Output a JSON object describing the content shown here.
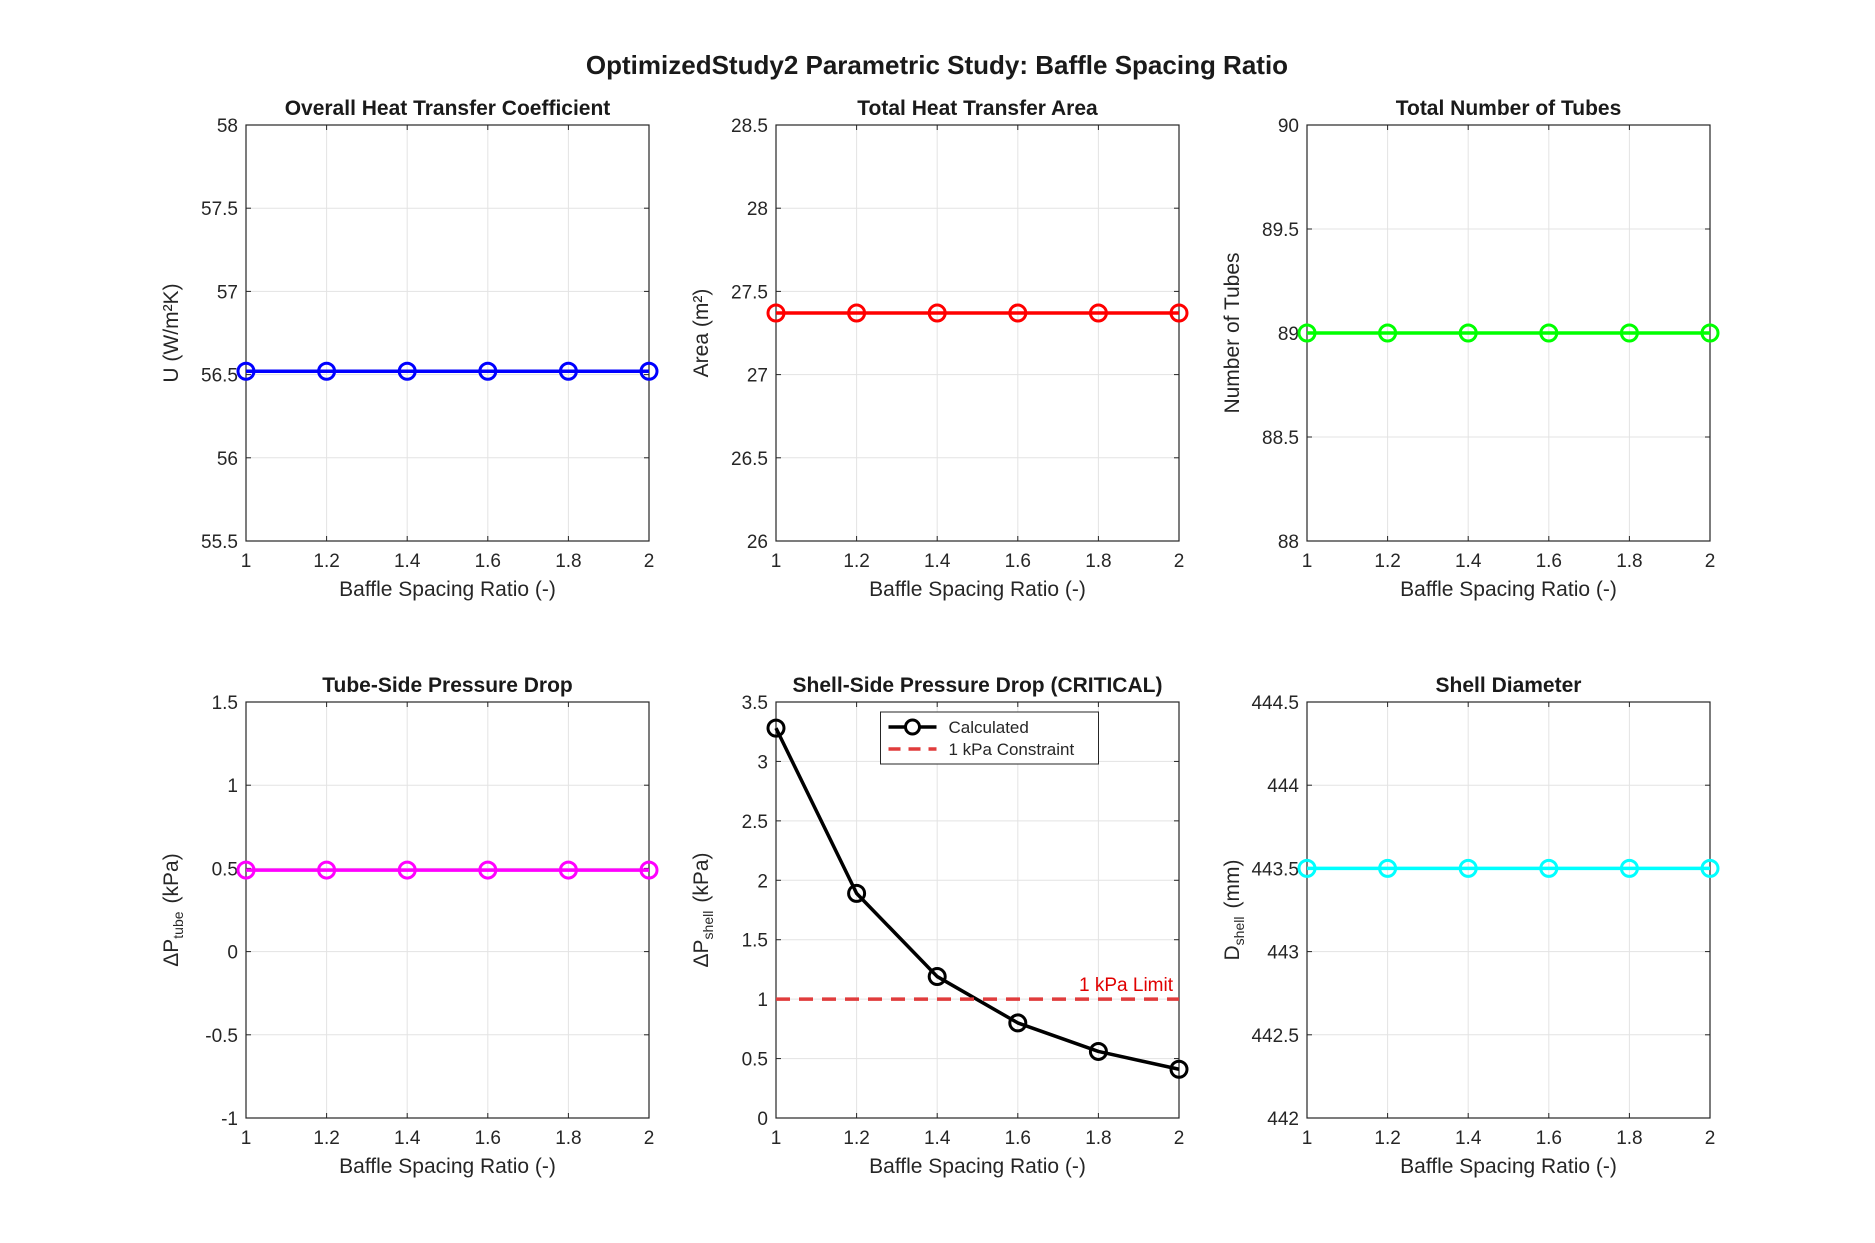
{
  "figure": {
    "title": "OptimizedStudy2 Parametric Study: Baffle Spacing Ratio"
  },
  "chart_data": [
    {
      "type": "line",
      "title": "Overall Heat Transfer Coefficient",
      "xlabel": "Baffle Spacing Ratio (-)",
      "ylabel": "U (W/m²K)",
      "x": [
        1.0,
        1.2,
        1.4,
        1.6,
        1.8,
        2.0
      ],
      "xlim": [
        1,
        2
      ],
      "ylim": [
        55.5,
        58
      ],
      "xticks": [
        "1",
        "1.2",
        "1.4",
        "1.6",
        "1.8",
        "2"
      ],
      "yticks": [
        "55.5",
        "56",
        "56.5",
        "57",
        "57.5",
        "58"
      ],
      "grid": true,
      "series": [
        {
          "values": [
            56.52,
            56.52,
            56.52,
            56.52,
            56.52,
            56.52
          ],
          "color": "#0000ff",
          "marker": "circle"
        }
      ]
    },
    {
      "type": "line",
      "title": "Total Heat Transfer Area",
      "xlabel": "Baffle Spacing Ratio (-)",
      "ylabel": "Area (m²)",
      "x": [
        1.0,
        1.2,
        1.4,
        1.6,
        1.8,
        2.0
      ],
      "xlim": [
        1,
        2
      ],
      "ylim": [
        26,
        28.5
      ],
      "xticks": [
        "1",
        "1.2",
        "1.4",
        "1.6",
        "1.8",
        "2"
      ],
      "yticks": [
        "26",
        "26.5",
        "27",
        "27.5",
        "28",
        "28.5"
      ],
      "grid": true,
      "series": [
        {
          "values": [
            27.37,
            27.37,
            27.37,
            27.37,
            27.37,
            27.37
          ],
          "color": "#ff0000",
          "marker": "circle"
        }
      ]
    },
    {
      "type": "line",
      "title": "Total Number of Tubes",
      "xlabel": "Baffle Spacing Ratio (-)",
      "ylabel": "Number of Tubes",
      "x": [
        1.0,
        1.2,
        1.4,
        1.6,
        1.8,
        2.0
      ],
      "xlim": [
        1,
        2
      ],
      "ylim": [
        88,
        90
      ],
      "xticks": [
        "1",
        "1.2",
        "1.4",
        "1.6",
        "1.8",
        "2"
      ],
      "yticks": [
        "88",
        "88.5",
        "89",
        "89.5",
        "90"
      ],
      "grid": true,
      "series": [
        {
          "values": [
            89,
            89,
            89,
            89,
            89,
            89
          ],
          "color": "#00ff00",
          "marker": "circle"
        }
      ]
    },
    {
      "type": "line",
      "title": "Tube-Side Pressure Drop",
      "xlabel": "Baffle Spacing Ratio (-)",
      "ylabel": "ΔP",
      "ylabel_sub": "tube",
      "ylabel_unit": "(kPa)",
      "x": [
        1.0,
        1.2,
        1.4,
        1.6,
        1.8,
        2.0
      ],
      "xlim": [
        1,
        2
      ],
      "ylim": [
        -1,
        1.5
      ],
      "xticks": [
        "1",
        "1.2",
        "1.4",
        "1.6",
        "1.8",
        "2"
      ],
      "yticks": [
        "-1",
        "-0.5",
        "0",
        "0.5",
        "1",
        "1.5"
      ],
      "grid": true,
      "series": [
        {
          "values": [
            0.49,
            0.49,
            0.49,
            0.49,
            0.49,
            0.49
          ],
          "color": "#ff00ff",
          "marker": "circle"
        }
      ]
    },
    {
      "type": "line",
      "title": "Shell-Side Pressure Drop (CRITICAL)",
      "xlabel": "Baffle Spacing Ratio (-)",
      "ylabel": "ΔP",
      "ylabel_sub": "shell",
      "ylabel_unit": "(kPa)",
      "x": [
        1.0,
        1.2,
        1.4,
        1.6,
        1.8,
        2.0
      ],
      "xlim": [
        1,
        2
      ],
      "ylim": [
        0,
        3.5
      ],
      "xticks": [
        "1",
        "1.2",
        "1.4",
        "1.6",
        "1.8",
        "2"
      ],
      "yticks": [
        "0",
        "0.5",
        "1",
        "1.5",
        "2",
        "2.5",
        "3",
        "3.5"
      ],
      "grid": true,
      "series": [
        {
          "name": "Calculated",
          "values": [
            3.28,
            1.89,
            1.19,
            0.8,
            0.56,
            0.41
          ],
          "color": "#000000",
          "marker": "circle"
        },
        {
          "name": "1 kPa Constraint",
          "values": [
            1,
            1,
            1,
            1,
            1,
            1
          ],
          "color": "#e03c3c",
          "dashed": true
        }
      ],
      "legend": "top",
      "annotation": {
        "text": "1 kPa Limit",
        "color": "#e00000"
      }
    },
    {
      "type": "line",
      "title": "Shell Diameter",
      "xlabel": "Baffle Spacing Ratio (-)",
      "ylabel": "D",
      "ylabel_sub": "shell",
      "ylabel_unit": "(mm)",
      "x": [
        1.0,
        1.2,
        1.4,
        1.6,
        1.8,
        2.0
      ],
      "xlim": [
        1,
        2
      ],
      "ylim": [
        442,
        444.5
      ],
      "xticks": [
        "1",
        "1.2",
        "1.4",
        "1.6",
        "1.8",
        "2"
      ],
      "yticks": [
        "442",
        "442.5",
        "443",
        "443.5",
        "444",
        "444.5"
      ],
      "grid": true,
      "series": [
        {
          "values": [
            443.5,
            443.5,
            443.5,
            443.5,
            443.5,
            443.5
          ],
          "color": "#00ffff",
          "marker": "circle"
        }
      ]
    }
  ]
}
